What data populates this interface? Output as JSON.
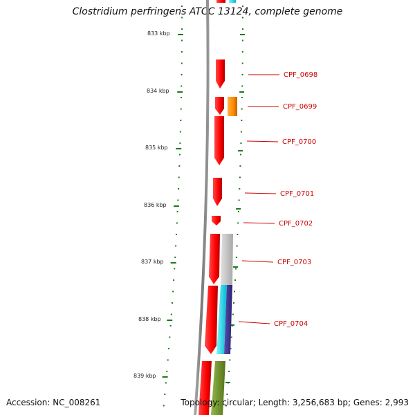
{
  "title": "Clostridium perfringens ATCC 13124, complete genome",
  "footer": {
    "accession_label": "Accession:",
    "accession": "NC_008261",
    "topology_label": "Topology:",
    "topology": "circular",
    "length_label": "Length:",
    "length": "3,256,683 bp",
    "genes_label": "Genes:",
    "genes": "2,993"
  },
  "colors": {
    "backbone": "#888888",
    "tick": "#1a7a1a",
    "cds": "#ff0000",
    "orange": "#ff8c00",
    "grey": "#c8c8c8",
    "cyan": "#00e5ff",
    "navy": "#3a2f8f",
    "olive": "#6b8e23",
    "label": "#cc0000"
  },
  "kbp_ticks": [
    {
      "label": "833 kbp"
    },
    {
      "label": "834 kbp"
    },
    {
      "label": "835 kbp"
    },
    {
      "label": "836 kbp"
    },
    {
      "label": "837 kbp"
    },
    {
      "label": "838 kbp"
    },
    {
      "label": "839 kbp"
    }
  ],
  "gene_labels": [
    "CPF_0698",
    "CPF_0699",
    "CPF_0700",
    "CPF_0701",
    "CPF_0702",
    "CPF_0703",
    "CPF_0704"
  ]
}
